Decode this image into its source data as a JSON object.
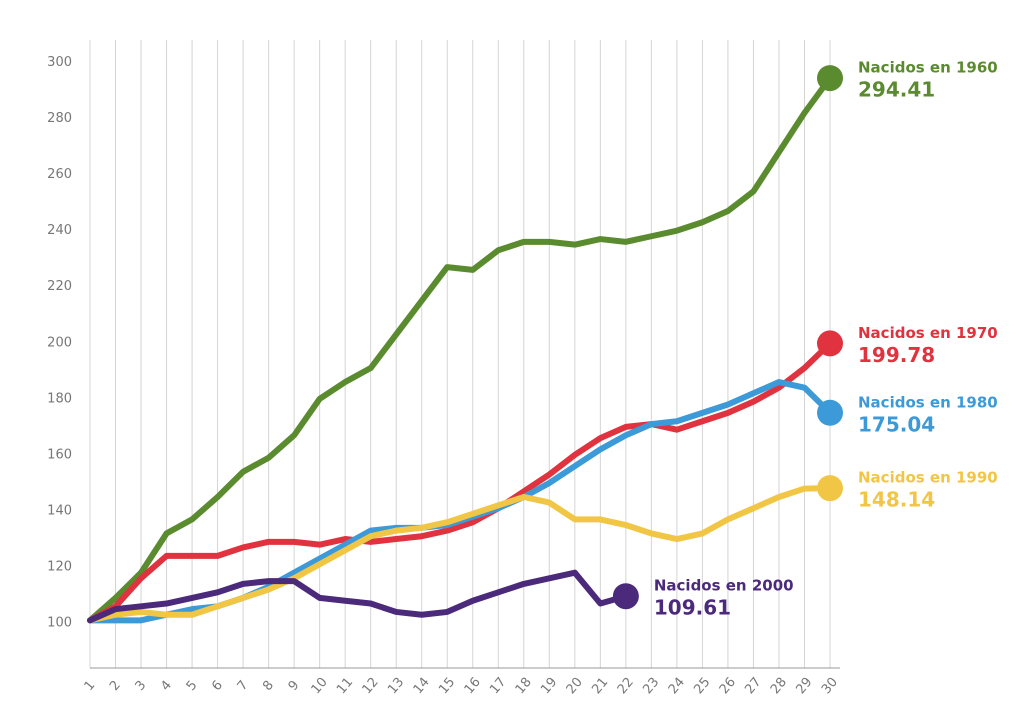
{
  "chart_data": {
    "type": "line",
    "x": [
      1,
      2,
      3,
      4,
      5,
      6,
      7,
      8,
      9,
      10,
      11,
      12,
      13,
      14,
      15,
      16,
      17,
      18,
      19,
      20,
      21,
      22,
      23,
      24,
      25,
      26,
      27,
      28,
      29,
      30
    ],
    "xlim": [
      1,
      30
    ],
    "ylim": [
      84,
      308
    ],
    "yticks": [
      100,
      120,
      140,
      160,
      180,
      200,
      220,
      240,
      260,
      280,
      300
    ],
    "grid": true,
    "series": [
      {
        "name": "Nacidos en 1960",
        "color": "#5b8b2f",
        "values": [
          101,
          109,
          118,
          132,
          137,
          145,
          154,
          159,
          167,
          180,
          186,
          191,
          203,
          215,
          227,
          226,
          233,
          236,
          236,
          235,
          237,
          236,
          238,
          240,
          243,
          247,
          254,
          268,
          282,
          294.41
        ]
      },
      {
        "name": "Nacidos en 1970",
        "color": "#e0333f",
        "values": [
          101,
          106,
          116,
          124,
          124,
          124,
          127,
          129,
          129,
          128,
          130,
          129,
          130,
          131,
          133,
          136,
          141,
          147,
          153,
          160,
          166,
          170,
          171,
          169,
          172,
          175,
          179,
          184,
          191,
          199.78
        ]
      },
      {
        "name": "Nacidos en 1980",
        "color": "#3d9ad8",
        "values": [
          101,
          101,
          101,
          103,
          105,
          106,
          109,
          113,
          118,
          123,
          128,
          133,
          134,
          134,
          135,
          138,
          141,
          145,
          150,
          156,
          162,
          167,
          171,
          172,
          175,
          178,
          182,
          186,
          184,
          175.04
        ]
      },
      {
        "name": "Nacidos en 1990",
        "color": "#f2c645",
        "values": [
          101,
          103,
          104,
          103,
          103,
          106,
          109,
          112,
          116,
          121,
          126,
          131,
          133,
          134,
          136,
          139,
          142,
          145,
          143,
          137,
          137,
          135,
          132,
          130,
          132,
          137,
          141,
          145,
          148,
          148.14
        ]
      },
      {
        "name": "Nacidos en 2000",
        "color": "#4b2a7b",
        "values": [
          101,
          105,
          106,
          107,
          109,
          111,
          114,
          115,
          115,
          109,
          108,
          107,
          104,
          103,
          104,
          108,
          111,
          114,
          116,
          118,
          107,
          109.61,
          null,
          null,
          null,
          null,
          null,
          null,
          null,
          null
        ]
      }
    ]
  }
}
